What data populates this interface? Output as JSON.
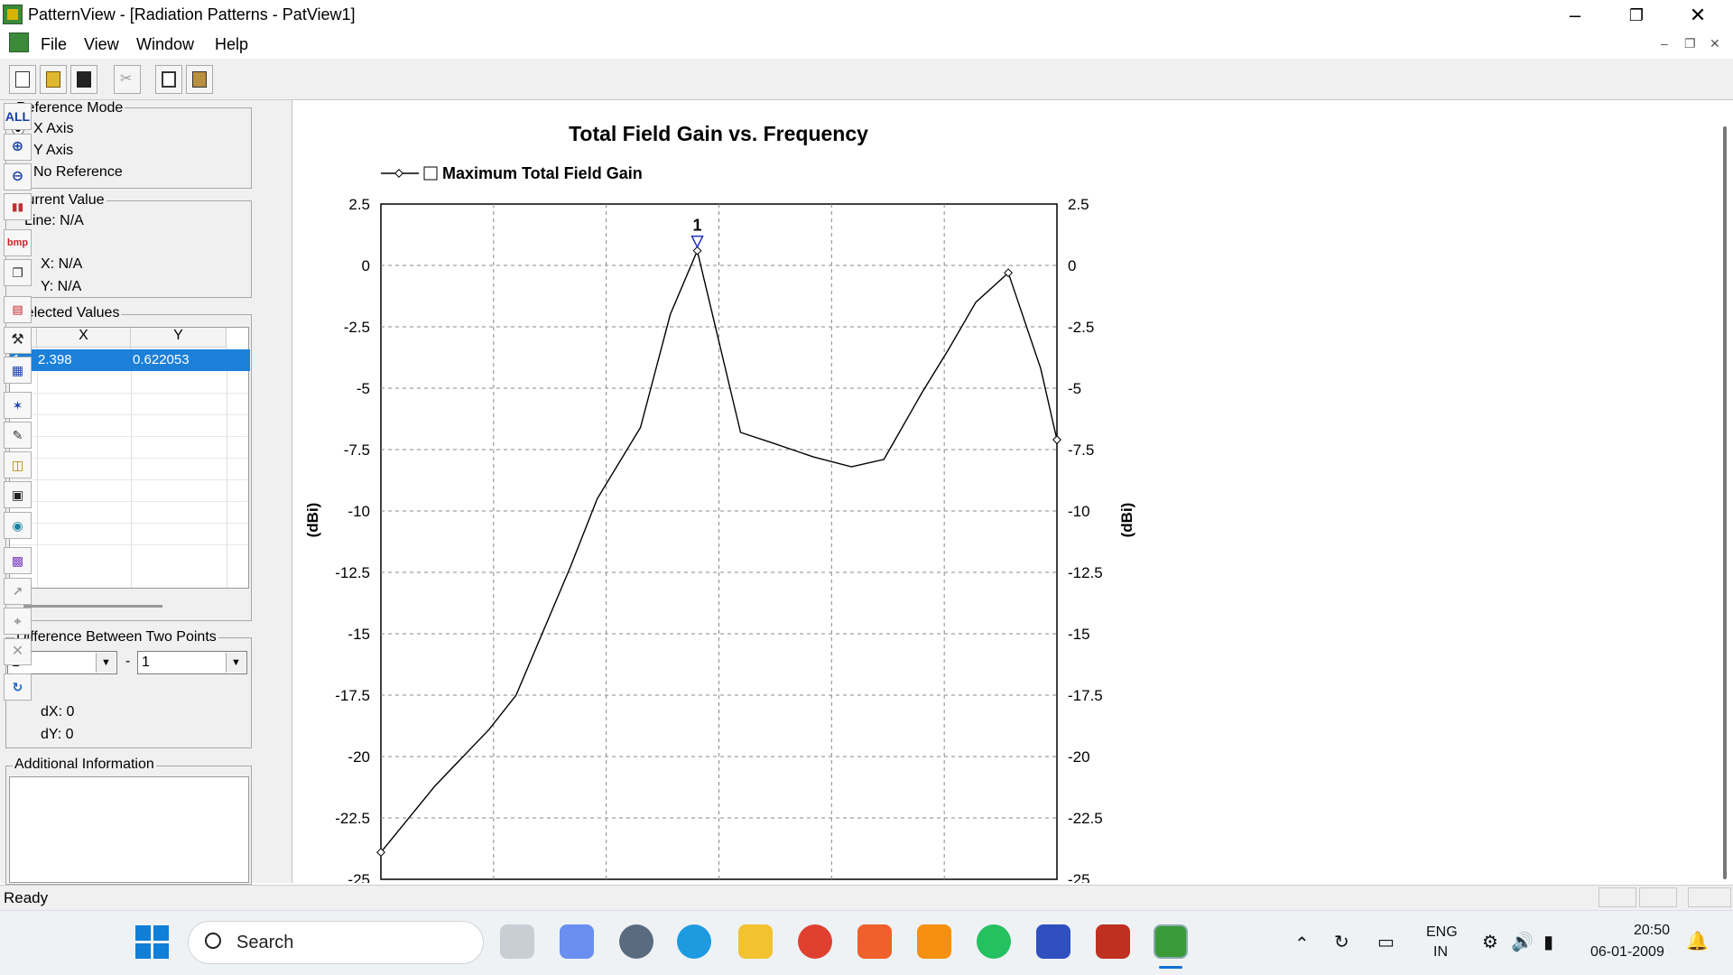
{
  "window": {
    "title": "PatternView - [Radiation Patterns - PatView1]"
  },
  "menu": {
    "items": [
      "File",
      "View",
      "Window",
      "Help"
    ]
  },
  "reference_mode": {
    "label": "Reference Mode",
    "options": [
      "X Axis",
      "Y Axis",
      "No Reference"
    ],
    "selected": "X Axis"
  },
  "current_value": {
    "label": "Current Value",
    "line": "Line: N/A",
    "x": "X: N/A",
    "y": "Y: N/A"
  },
  "selected_values": {
    "label": "Selected Values",
    "columns": [
      "#",
      "X",
      "Y"
    ],
    "rows": [
      {
        "n": "1",
        "x": "2.398",
        "y": "0.622053"
      }
    ]
  },
  "difference": {
    "label": "Difference Between Two Points",
    "from": "1",
    "sep": "-",
    "to": "1",
    "dx": "dX: 0",
    "dy": "dY: 0"
  },
  "additional_info": {
    "label": "Additional Information"
  },
  "vtoolbar": {
    "all_label": "ALL",
    "bmp_label": "bmp"
  },
  "status": {
    "text": "Ready"
  },
  "taskbar": {
    "search_placeholder": "Search",
    "lang": "ENG",
    "region": "IN",
    "time": "20:50",
    "date": "06-01-2009"
  },
  "chart_data": {
    "type": "line",
    "title": "Total Field Gain vs. Frequency",
    "ylabel": "(dBi)",
    "y2label": "(dBi)",
    "ylim": [
      -25,
      2.5
    ],
    "yticks": [
      "2.5",
      "0",
      "-2.5",
      "-5",
      "-7.5",
      "-10",
      "-12.5",
      "-15",
      "-17.5",
      "-20",
      "-22.5",
      "-25"
    ],
    "series": [
      {
        "name": "Maximum Total Field Gain",
        "color": "#000000",
        "points": [
          [
            0.0,
            -23.9
          ],
          [
            0.1,
            -21.2
          ],
          [
            0.2,
            -18.9
          ],
          [
            0.25,
            -17.5
          ],
          [
            0.35,
            -12.3
          ],
          [
            0.4,
            -9.5
          ],
          [
            0.48,
            -6.6
          ],
          [
            0.535,
            -2.0
          ],
          [
            0.585,
            0.6
          ],
          [
            0.625,
            -3.1
          ],
          [
            0.665,
            -6.8
          ],
          [
            0.72,
            -7.2
          ],
          [
            0.8,
            -7.8
          ],
          [
            0.87,
            -8.2
          ],
          [
            0.93,
            -7.9
          ],
          [
            1.0,
            -5.2
          ],
          [
            1.05,
            -3.4
          ],
          [
            1.1,
            -1.5
          ],
          [
            1.16,
            -0.3
          ],
          [
            1.22,
            -4.2
          ],
          [
            1.25,
            -7.1
          ]
        ],
        "marked_points": [
          0,
          20,
          8,
          18
        ]
      }
    ],
    "marker": {
      "label": "1",
      "point_index": 8
    }
  }
}
